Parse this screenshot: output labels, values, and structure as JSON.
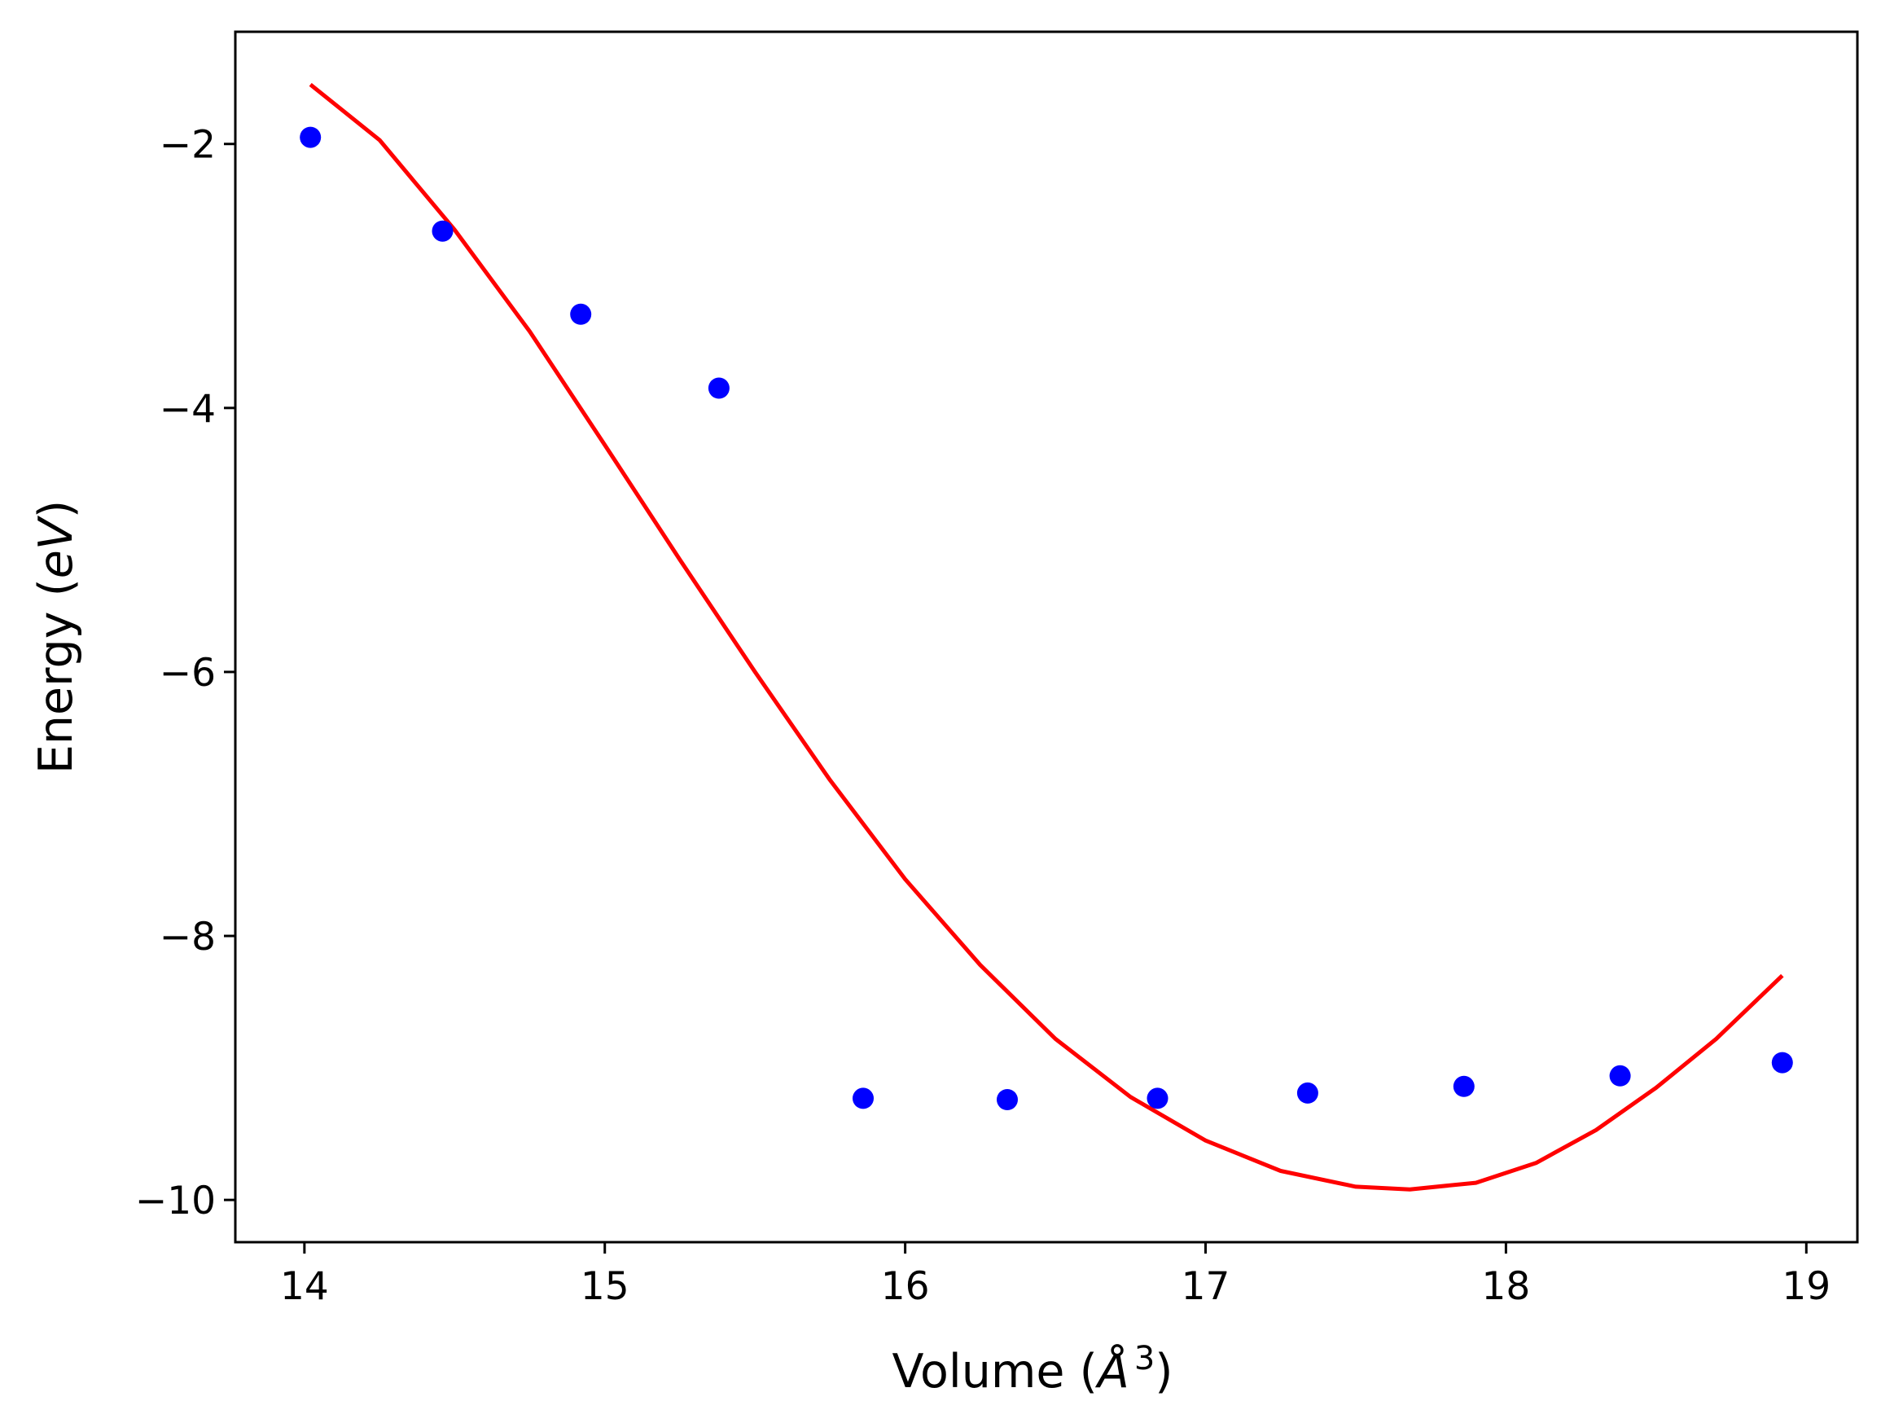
{
  "chart_data": {
    "type": "scatter",
    "title": "",
    "xlabel": {
      "pre": "Volume (",
      "var": "Å",
      "sup": "3",
      "post": ")"
    },
    "ylabel": {
      "pre": "Energy (",
      "var": "eV",
      "post": ")"
    },
    "xlim": [
      13.77,
      19.17
    ],
    "ylim": [
      -10.32,
      -1.15
    ],
    "x_ticks": [
      14,
      15,
      16,
      17,
      18,
      19
    ],
    "y_ticks": [
      -10,
      -8,
      -6,
      -4,
      -2
    ],
    "x_tick_labels": [
      "14",
      "15",
      "16",
      "17",
      "18",
      "19"
    ],
    "y_tick_labels": [
      "−10",
      "−8",
      "−6",
      "−4",
      "−2"
    ],
    "grid": false,
    "legend": "none",
    "colors": {
      "points": "#0000ff",
      "fit": "#ff0000",
      "axes": "#000000"
    },
    "series": [
      {
        "kind": "points",
        "x": [
          14.02,
          14.46,
          14.92,
          15.38,
          15.86,
          16.34,
          16.84,
          17.34,
          17.86,
          18.38,
          18.92
        ],
        "y": [
          -1.95,
          -2.66,
          -3.29,
          -3.85,
          -9.23,
          -9.24,
          -9.23,
          -9.19,
          -9.14,
          -9.06,
          -8.96
        ]
      },
      {
        "kind": "line",
        "x": [
          14.02,
          14.25,
          14.5,
          14.75,
          15.0,
          15.25,
          15.5,
          15.75,
          16.0,
          16.25,
          16.5,
          16.75,
          17.0,
          17.25,
          17.5,
          17.68,
          17.9,
          18.1,
          18.3,
          18.5,
          18.7,
          18.92
        ],
        "y": [
          -1.55,
          -1.97,
          -2.65,
          -3.42,
          -4.28,
          -5.15,
          -6.0,
          -6.82,
          -7.57,
          -8.22,
          -8.78,
          -9.22,
          -9.55,
          -9.78,
          -9.9,
          -9.92,
          -9.87,
          -9.72,
          -9.47,
          -9.15,
          -8.78,
          -8.3
        ]
      }
    ]
  }
}
